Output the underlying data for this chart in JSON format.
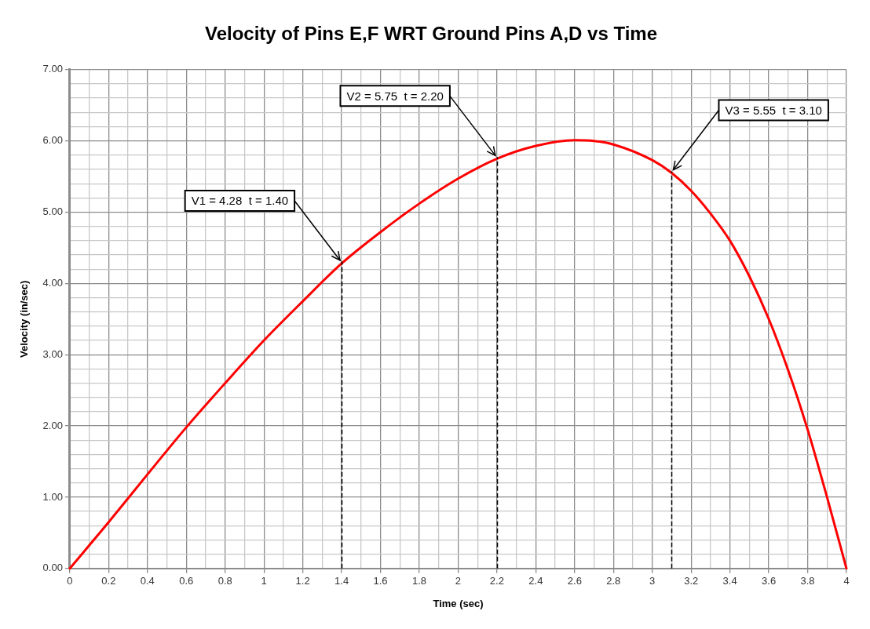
{
  "chart_data": {
    "type": "line",
    "title": "Velocity of Pins E,F WRT Ground Pins A,D vs Time",
    "xlabel": "Time (sec)",
    "ylabel": "Velocity (in/sec)",
    "x": [
      0,
      0.2,
      0.4,
      0.6,
      0.8,
      1.0,
      1.2,
      1.4,
      1.6,
      1.8,
      2.0,
      2.2,
      2.4,
      2.6,
      2.7,
      2.8,
      3.0,
      3.1,
      3.2,
      3.3,
      3.4,
      3.5,
      3.6,
      3.7,
      3.8,
      3.9,
      4.0
    ],
    "series": [
      {
        "color": "#ff0000",
        "values": [
          0,
          0.65,
          1.32,
          1.98,
          2.6,
          3.2,
          3.75,
          4.28,
          4.72,
          5.12,
          5.47,
          5.75,
          5.93,
          6.01,
          6.0,
          5.95,
          5.73,
          5.55,
          5.3,
          4.98,
          4.6,
          4.1,
          3.5,
          2.78,
          1.95,
          1.0,
          0
        ]
      }
    ],
    "xlim": [
      0,
      4
    ],
    "ylim": [
      0,
      7
    ],
    "xticks": [
      0,
      {
        "value": 0.1,
        "label": null
      },
      0.2,
      {
        "value": 0.3,
        "label": null
      },
      0.4,
      {
        "value": 0.5,
        "label": null
      },
      0.6,
      {
        "value": 0.7,
        "label": null
      },
      0.8,
      {
        "value": 0.9,
        "label": null
      },
      1,
      {
        "value": 1.1,
        "label": null
      },
      1.2,
      {
        "value": 1.3,
        "label": null
      },
      1.4,
      {
        "value": 1.5,
        "label": null
      },
      1.6,
      {
        "value": 1.7,
        "label": null
      },
      1.8,
      {
        "value": 1.9,
        "label": null
      },
      2,
      {
        "value": 2.1,
        "label": null
      },
      2.2,
      {
        "value": 2.3,
        "label": null
      },
      2.4,
      {
        "value": 2.5,
        "label": null
      },
      2.6,
      {
        "value": 2.7,
        "label": null
      },
      2.8,
      {
        "value": 2.9,
        "label": null
      },
      3,
      {
        "value": 3.1,
        "label": null
      },
      3.2,
      {
        "value": 3.3,
        "label": null
      },
      3.4,
      {
        "value": 3.5,
        "label": null
      },
      3.6,
      {
        "value": 3.7,
        "label": null
      },
      3.8,
      {
        "value": 3.9,
        "label": null
      },
      4
    ],
    "yticks": [
      {
        "value": 0,
        "label": "0.00"
      },
      {
        "value": 0.2,
        "label": null
      },
      {
        "value": 0.4,
        "label": null
      },
      {
        "value": 0.6,
        "label": null
      },
      {
        "value": 0.8,
        "label": null
      },
      {
        "value": 1,
        "label": "1.00"
      },
      {
        "value": 1.2,
        "label": null
      },
      {
        "value": 1.4,
        "label": null
      },
      {
        "value": 1.6,
        "label": null
      },
      {
        "value": 1.8,
        "label": null
      },
      {
        "value": 2,
        "label": "2.00"
      },
      {
        "value": 2.2,
        "label": null
      },
      {
        "value": 2.4,
        "label": null
      },
      {
        "value": 2.6,
        "label": null
      },
      {
        "value": 2.8,
        "label": null
      },
      {
        "value": 3,
        "label": "3.00"
      },
      {
        "value": 3.2,
        "label": null
      },
      {
        "value": 3.4,
        "label": null
      },
      {
        "value": 3.6,
        "label": null
      },
      {
        "value": 3.8,
        "label": null
      },
      {
        "value": 4,
        "label": "4.00"
      },
      {
        "value": 4.2,
        "label": null
      },
      {
        "value": 4.4,
        "label": null
      },
      {
        "value": 4.6,
        "label": null
      },
      {
        "value": 4.8,
        "label": null
      },
      {
        "value": 5,
        "label": "5.00"
      },
      {
        "value": 5.2,
        "label": null
      },
      {
        "value": 5.4,
        "label": null
      },
      {
        "value": 5.6,
        "label": null
      },
      {
        "value": 5.8,
        "label": null
      },
      {
        "value": 6,
        "label": "6.00"
      },
      {
        "value": 6.2,
        "label": null
      },
      {
        "value": 6.4,
        "label": null
      },
      {
        "value": 6.6,
        "label": null
      },
      {
        "value": 6.8,
        "label": null
      },
      {
        "value": 7,
        "label": "7.00"
      }
    ],
    "annotations": [
      {
        "text": "V1 = 4.28  t = 1.40",
        "x": 1.4,
        "y": 4.28
      },
      {
        "text": "V2 = 5.75  t = 2.20",
        "x": 2.2,
        "y": 5.75
      },
      {
        "text": "V3 = 5.55  t = 3.10",
        "x": 3.1,
        "y": 5.55
      }
    ],
    "ref_lines": [
      {
        "axis": "x",
        "value": 1.4,
        "color": "#000000",
        "line_style": "dashed"
      }
    ],
    "grid": true,
    "legend": false,
    "marker": "none",
    "line_style": "solid"
  }
}
